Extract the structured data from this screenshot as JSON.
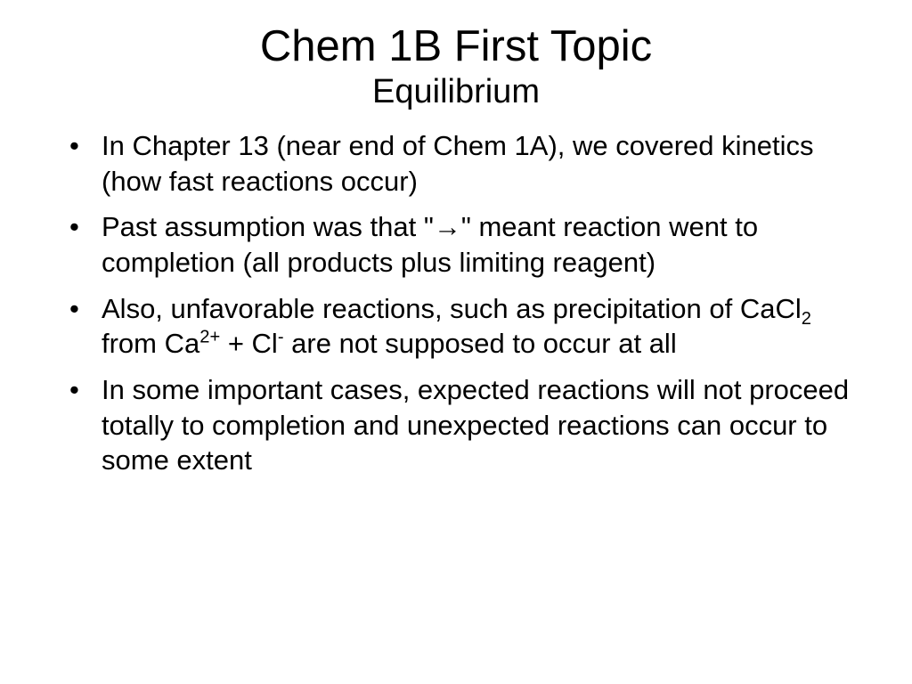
{
  "slide": {
    "title": "Chem 1B First Topic",
    "subtitle": "Equilibrium",
    "title_fontsize": 49,
    "subtitle_fontsize": 38,
    "body_fontsize": 31,
    "text_color": "#000000",
    "background_color": "#ffffff",
    "font_family": "Verdana",
    "bullets": [
      {
        "text_before": "In Chapter 13 (near end of Chem 1A), we covered kinetics (how fast reactions occur)"
      },
      {
        "text_before": "Past assumption was that \"",
        "arrow": "→",
        "text_after": "\" meant reaction went to completion (all products plus limiting reagent)"
      },
      {
        "text_before": "Also, unfavorable reactions, such as precipitation of CaCl",
        "sub1": "2",
        "mid1": " from Ca",
        "sup1": "2+",
        "mid2": " + Cl",
        "sup2": "-",
        "text_after": " are not supposed to occur at all"
      },
      {
        "text_before": "In some important cases, expected reactions will not proceed totally to completion and unexpected reactions can occur to some extent"
      }
    ]
  }
}
